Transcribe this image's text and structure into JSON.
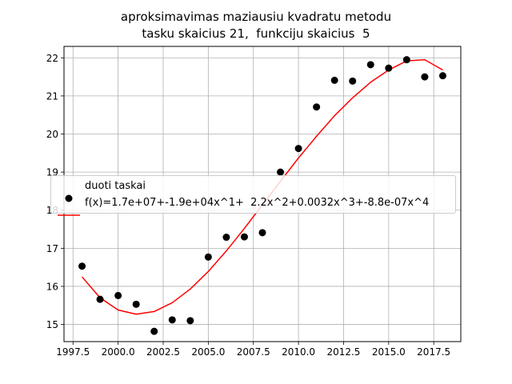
{
  "title_line1": "aproksimavimas maziausiu kvadratu metodu",
  "title_line2": "tasku skaicius 21,  funkciju skaicius  5",
  "chart_data": {
    "type": "scatter",
    "title": "aproksimavimas maziausiu kvadratu metodu\ntasku skaicius 21,  funkciju skaicius  5",
    "xlabel": "",
    "ylabel": "",
    "xlim": [
      1997.0,
      2019.0
    ],
    "ylim": [
      14.55,
      22.3
    ],
    "grid": true,
    "legend_position": "center-left",
    "x_ticks": [
      1997.5,
      2000.0,
      2002.5,
      2005.0,
      2007.5,
      2010.0,
      2012.5,
      2015.0,
      2017.5
    ],
    "x_tick_labels": [
      "1997.5",
      "2000.0",
      "2002.5",
      "2005.0",
      "2007.5",
      "2010.0",
      "2012.5",
      "2015.0",
      "2017.5"
    ],
    "y_ticks": [
      15,
      16,
      17,
      18,
      19,
      20,
      21,
      22
    ],
    "y_tick_labels": [
      "15",
      "16",
      "17",
      "18",
      "19",
      "20",
      "21",
      "22"
    ],
    "points": {
      "name": "duoti taskai",
      "color": "#000000",
      "x": [
        1998,
        1999,
        2000,
        2001,
        2002,
        2003,
        2004,
        2005,
        2006,
        2007,
        2008,
        2009,
        2010,
        2011,
        2012,
        2013,
        2014,
        2015,
        2016,
        2017,
        2018
      ],
      "y": [
        16.53,
        15.66,
        15.76,
        15.53,
        14.82,
        15.12,
        15.1,
        16.77,
        17.29,
        17.3,
        17.41,
        19.0,
        19.62,
        20.71,
        21.41,
        21.39,
        21.82,
        21.73,
        21.95,
        21.5,
        21.53
      ]
    },
    "fit": {
      "name": "f(x)=1.7e+07+-1.9e+04x^1+  2.2x^2+0.0032x^3+-8.8e-07x^4",
      "color": "#ff0000",
      "x": [
        1998,
        1999,
        2000,
        2001,
        2002,
        2003,
        2004,
        2005,
        2006,
        2007,
        2008,
        2009,
        2010,
        2011,
        2012,
        2013,
        2014,
        2015,
        2016,
        2017,
        2018
      ],
      "y": [
        16.25,
        15.7,
        15.38,
        15.27,
        15.34,
        15.57,
        15.93,
        16.39,
        16.93,
        17.52,
        18.14,
        18.76,
        19.37,
        19.94,
        20.48,
        20.95,
        21.36,
        21.68,
        21.92,
        21.95,
        21.68
      ]
    }
  }
}
